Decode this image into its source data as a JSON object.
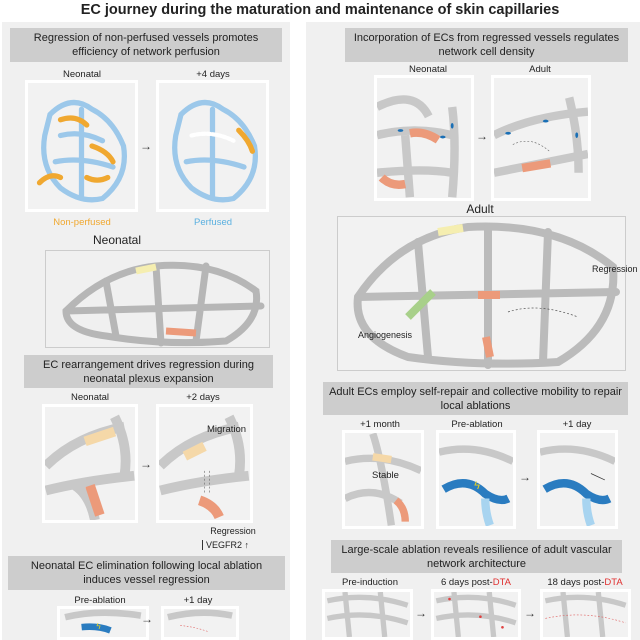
{
  "title": "EC journey during the maturation and maintenance of skin capillaries",
  "left": {
    "perfusion": {
      "header": "Regression of non-perfused vessels promotes efficiency of network perfusion",
      "labels": [
        "Neonatal",
        "+4 days"
      ],
      "legend": {
        "non_perfused": "Non-perfused",
        "perfused": "Perfused"
      }
    },
    "neonatal_label": "Neonatal",
    "rearrangement": {
      "header": "EC rearrangement drives regression during neonatal plexus expansion",
      "labels": [
        "Neonatal",
        "+2 days"
      ],
      "migration": "Migration",
      "regression": "Regression",
      "vegfr2": "VEGFR2"
    },
    "elimination": {
      "header": "Neonatal EC elimination following local ablation induces vessel regression",
      "labels": [
        "Pre-ablation",
        "+1 day"
      ]
    }
  },
  "right": {
    "incorporation": {
      "header": "Incorporation of ECs from regressed vessels regulates network cell density",
      "labels": [
        "Neonatal",
        "Adult"
      ]
    },
    "adult_label": "Adult",
    "adult_annotations": {
      "regression": "Regression",
      "angiogenesis": "Angiogenesis"
    },
    "self_repair": {
      "header": "Adult ECs employ self-repair and collective mobility to repair local ablations",
      "labels": [
        "+1 month",
        "Pre-ablation",
        "+1 day"
      ],
      "stable": "Stable"
    },
    "large_scale": {
      "header": "Large-scale ablation reveals resilience of adult vascular network architecture",
      "labels": {
        "pre": "Pre-induction",
        "d6": "6 days post-",
        "d18": "18 days post-",
        "dta": "DTA"
      }
    }
  },
  "colors": {
    "orange": "#f0a830",
    "blue_light": "#9cc8ea",
    "salmon": "#ec9a7a",
    "ec_blue": "#1a6fb5",
    "yellow": "#f5eeb0",
    "green": "#a8d08a"
  }
}
